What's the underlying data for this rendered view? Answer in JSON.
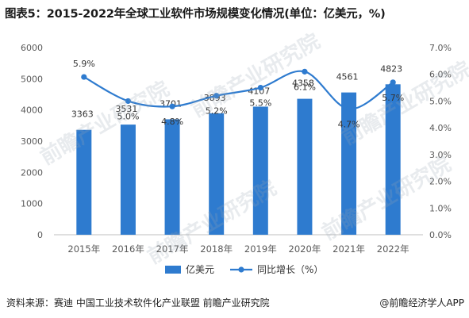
{
  "title": "图表5：2015-2022年全球工业软件市场规模变化情况(单位：亿美元，%)",
  "source": "资料来源：赛迪 中国工业技术软件化产业联盟 前瞻产业研究院",
  "brand": "@前瞻经济学人APP",
  "watermark": "前瞻产业研究院",
  "colors": {
    "bar": "#2e7bcf",
    "line": "#2e7bcf",
    "axis": "#bfbfbf",
    "text": "#595959"
  },
  "chart_data": {
    "type": "bar",
    "categories": [
      "2015年",
      "2016年",
      "2017年",
      "2018年",
      "2019年",
      "2020年",
      "2021年",
      "2022年"
    ],
    "series": [
      {
        "name": "亿美元",
        "type": "bar",
        "axis": "left",
        "values": [
          3363,
          3531,
          3701,
          3893,
          4107,
          4358,
          4561,
          4823
        ],
        "labels": [
          "3363",
          "3531",
          "3701",
          "3893",
          "4107",
          "4358",
          "4561",
          "4823"
        ]
      },
      {
        "name": "同比增长（%）",
        "type": "line",
        "axis": "right",
        "values": [
          5.9,
          5.0,
          4.8,
          5.2,
          5.5,
          6.1,
          4.7,
          5.7
        ],
        "labels": [
          "5.9%",
          "5.0%",
          "4.8%",
          "5.2%",
          "5.5%",
          "6.1%",
          "4.7%",
          "5.7%"
        ]
      }
    ],
    "left_axis": {
      "min": 0,
      "max": 6000,
      "ticks": [
        "0",
        "1000",
        "2000",
        "3000",
        "4000",
        "5000",
        "6000"
      ]
    },
    "right_axis": {
      "min": 0,
      "max": 7.0,
      "ticks": [
        "0.0%",
        "1.0%",
        "2.0%",
        "3.0%",
        "4.0%",
        "5.0%",
        "6.0%",
        "7.0%"
      ]
    },
    "legend_position": "bottom",
    "grid": false
  }
}
